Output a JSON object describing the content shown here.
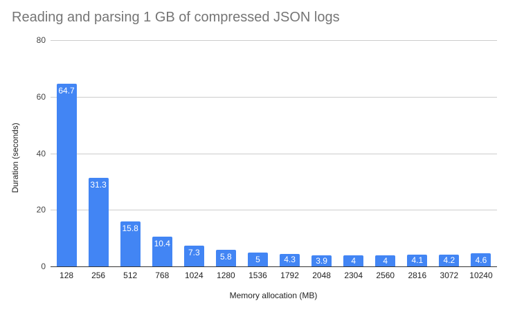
{
  "chart_data": {
    "type": "bar",
    "title": "Reading and parsing 1 GB of compressed JSON logs",
    "xlabel": "Memory allocation (MB)",
    "ylabel": "Duration (seconds)",
    "categories": [
      "128",
      "256",
      "512",
      "768",
      "1024",
      "1280",
      "1536",
      "1792",
      "2048",
      "2304",
      "2560",
      "2816",
      "3072",
      "10240"
    ],
    "values": [
      64.7,
      31.3,
      15.8,
      10.4,
      7.3,
      5.8,
      5,
      4.3,
      3.9,
      4,
      4,
      4.1,
      4.2,
      4.6
    ],
    "value_labels": [
      "64.7",
      "31.3",
      "15.8",
      "10.4",
      "7.3",
      "5.8",
      "5",
      "4.3",
      "3.9",
      "4",
      "4",
      "4.1",
      "4.2",
      "4.6"
    ],
    "ylim": [
      0,
      80
    ],
    "yticks": [
      "0",
      "20",
      "40",
      "60",
      "80"
    ],
    "grid": true,
    "legend": "none",
    "bar_color": "#4285f4"
  }
}
